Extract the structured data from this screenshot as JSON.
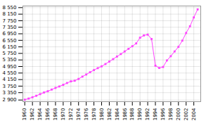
{
  "chart_data": {
    "type": "line",
    "x": [
      1960,
      1961,
      1962,
      1963,
      1964,
      1965,
      1966,
      1967,
      1968,
      1969,
      1970,
      1971,
      1972,
      1973,
      1974,
      1975,
      1976,
      1977,
      1978,
      1979,
      1980,
      1981,
      1982,
      1983,
      1984,
      1985,
      1986,
      1987,
      1988,
      1989,
      1990,
      1991,
      1992,
      1993,
      1994,
      1995,
      1996,
      1997,
      1998,
      1999,
      2000,
      2001,
      2002,
      2003,
      2004,
      2005
    ],
    "values": [
      2920,
      2990,
      3070,
      3160,
      3260,
      3360,
      3440,
      3540,
      3640,
      3730,
      3830,
      3940,
      4040,
      4080,
      4190,
      4330,
      4460,
      4600,
      4730,
      4850,
      4960,
      5100,
      5250,
      5400,
      5560,
      5710,
      5870,
      6030,
      6190,
      6360,
      6710,
      6850,
      6900,
      6630,
      5000,
      4860,
      4920,
      5320,
      5580,
      5870,
      6150,
      6530,
      7000,
      7410,
      7950,
      8440
    ],
    "color": "#FF44FF",
    "marker": "square",
    "xlim": [
      1959.5,
      2005.8
    ],
    "xticks": [
      1960,
      1962,
      1964,
      1966,
      1968,
      1970,
      1972,
      1974,
      1976,
      1978,
      1980,
      1982,
      1984,
      1986,
      1988,
      1990,
      1992,
      1994,
      1996,
      1998,
      2000,
      2002,
      2004
    ],
    "ylim": [
      2800,
      8650
    ],
    "yticks": [
      {
        "value": 2900,
        "label": "2 900"
      },
      {
        "value": 3350,
        "label": "3 350"
      },
      {
        "value": 3750,
        "label": "3 750"
      },
      {
        "value": 4150,
        "label": "4 150"
      },
      {
        "value": 4550,
        "label": "4 550"
      },
      {
        "value": 4950,
        "label": "4 950"
      },
      {
        "value": 5350,
        "label": "5 350"
      },
      {
        "value": 5750,
        "label": "5 750"
      },
      {
        "value": 6150,
        "label": "6 150"
      },
      {
        "value": 6550,
        "label": "6 550"
      },
      {
        "value": 6950,
        "label": "6 950"
      },
      {
        "value": 7350,
        "label": "7 350"
      },
      {
        "value": 7750,
        "label": "7 750"
      },
      {
        "value": 8150,
        "label": "8 150"
      },
      {
        "value": 8550,
        "label": "8 550"
      }
    ],
    "grid": true
  }
}
